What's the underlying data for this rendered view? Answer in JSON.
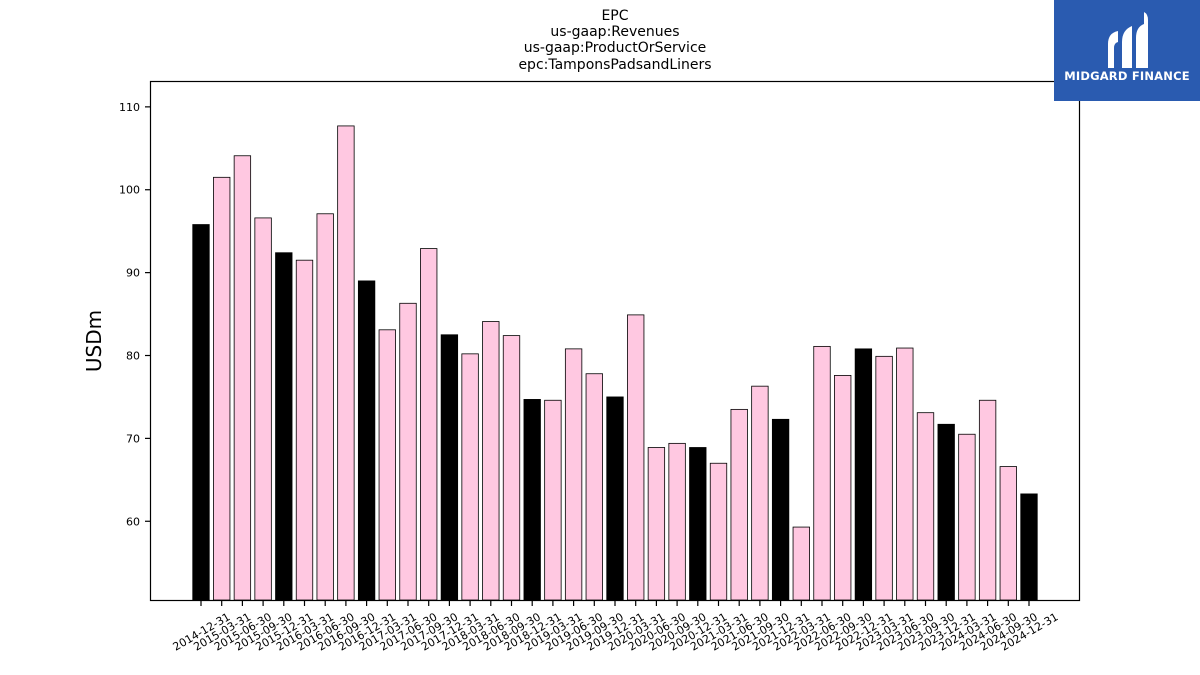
{
  "logo": {
    "text": "MIDGARD FINANCE",
    "background": "#2a5bb0"
  },
  "chart_data": {
    "type": "bar",
    "title_lines": [
      "EPC",
      "us-gaap:Revenues",
      "us-gaap:ProductOrService",
      "epc:TamponsPadsandLiners"
    ],
    "xlabel": "",
    "ylabel": "USDm",
    "ylim": [
      50.5,
      113
    ],
    "yticks": [
      60,
      70,
      80,
      90,
      100,
      110
    ],
    "grid": false,
    "colors": {
      "quarter": "#ffc8e1",
      "year_end": "#000000",
      "edge": "#000000"
    },
    "categories": [
      "2014-12-31",
      "2015-03-31",
      "2015-06-30",
      "2015-09-30",
      "2015-12-31",
      "2016-03-31",
      "2016-06-30",
      "2016-09-30",
      "2016-12-31",
      "2017-03-31",
      "2017-06-30",
      "2017-09-30",
      "2017-12-31",
      "2018-03-31",
      "2018-06-30",
      "2018-09-30",
      "2018-12-31",
      "2019-03-31",
      "2019-06-30",
      "2019-09-30",
      "2019-12-31",
      "2020-03-31",
      "2020-06-30",
      "2020-09-30",
      "2020-12-31",
      "2021-03-31",
      "2021-06-30",
      "2021-09-30",
      "2021-12-31",
      "2022-03-31",
      "2022-06-30",
      "2022-09-30",
      "2022-12-31",
      "2023-03-31",
      "2023-06-30",
      "2023-09-30",
      "2023-12-31",
      "2024-03-31",
      "2024-06-30",
      "2024-09-30",
      "2024-12-31"
    ],
    "values": [
      95.8,
      101.5,
      104.1,
      96.6,
      92.4,
      91.5,
      97.1,
      107.7,
      89.0,
      83.1,
      86.3,
      92.9,
      82.5,
      80.2,
      84.1,
      82.4,
      74.7,
      74.6,
      80.8,
      77.8,
      75.0,
      84.9,
      68.9,
      69.4,
      68.9,
      67.0,
      73.5,
      76.3,
      72.3,
      59.3,
      81.1,
      77.6,
      80.8,
      79.9,
      80.9,
      73.1,
      71.7,
      70.5,
      74.6,
      66.6,
      63.3
    ],
    "year_end": [
      true,
      false,
      false,
      false,
      true,
      false,
      false,
      false,
      true,
      false,
      false,
      false,
      true,
      false,
      false,
      false,
      true,
      false,
      false,
      false,
      true,
      false,
      false,
      false,
      true,
      false,
      false,
      false,
      true,
      false,
      false,
      false,
      true,
      false,
      false,
      false,
      true,
      false,
      false,
      false,
      true
    ]
  }
}
